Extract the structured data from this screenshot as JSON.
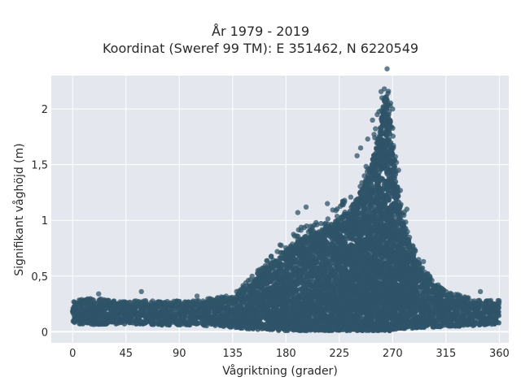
{
  "chart_data": {
    "type": "scatter",
    "title": "År 1979 - 2019",
    "subtitle": "Koordinat (Sweref 99 TM): E 351462, N 6220549",
    "xlabel": "Vågriktning (grader)",
    "ylabel": "Signifikant våghöjd (m)",
    "xlim": [
      -18,
      368
    ],
    "ylim": [
      -0.1,
      2.3
    ],
    "xticks": [
      0,
      45,
      90,
      135,
      180,
      225,
      270,
      315,
      360
    ],
    "xtick_labels": [
      "0",
      "45",
      "90",
      "135",
      "180",
      "225",
      "270",
      "315",
      "360"
    ],
    "yticks": [
      0,
      0.5,
      1,
      1.5,
      2
    ],
    "ytick_labels": [
      "0",
      "0,5",
      "1",
      "1,5",
      "2"
    ],
    "grid": true,
    "background": "#e5e7ee",
    "marker_color": "#2f5468",
    "series": [
      {
        "x": [
          0,
          10,
          20,
          30,
          45,
          60,
          75,
          90,
          105,
          120,
          135,
          145,
          155,
          165,
          175,
          185,
          195,
          205,
          215,
          225,
          235,
          245,
          252,
          258,
          262,
          265,
          268,
          272,
          278,
          285,
          295,
          305,
          315,
          330,
          345,
          360
        ],
        "y_upper": [
          0.25,
          0.26,
          0.27,
          0.25,
          0.24,
          0.25,
          0.24,
          0.25,
          0.25,
          0.27,
          0.3,
          0.38,
          0.48,
          0.58,
          0.68,
          0.77,
          0.85,
          0.9,
          0.95,
          1.02,
          1.12,
          1.3,
          1.5,
          1.75,
          2.05,
          2.15,
          1.9,
          1.45,
          1.05,
          0.75,
          0.52,
          0.4,
          0.33,
          0.28,
          0.25,
          0.25
        ],
        "y_lower": [
          0.07,
          0.07,
          0.06,
          0.07,
          0.07,
          0.07,
          0.06,
          0.06,
          0.06,
          0.05,
          0.04,
          0.03,
          0.02,
          0.02,
          0.01,
          0.01,
          0.01,
          0.01,
          0.01,
          0.01,
          0.01,
          0.01,
          0.01,
          0.01,
          0.01,
          0.01,
          0.01,
          0.02,
          0.03,
          0.03,
          0.04,
          0.04,
          0.05,
          0.05,
          0.06,
          0.07
        ]
      }
    ],
    "outliers": [
      [
        22,
        0.34
      ],
      [
        58,
        0.36
      ],
      [
        105,
        0.32
      ],
      [
        190,
        1.07
      ],
      [
        197,
        1.12
      ],
      [
        215,
        1.15
      ],
      [
        228,
        1.17
      ],
      [
        240,
        1.58
      ],
      [
        243,
        1.65
      ],
      [
        249,
        1.73
      ],
      [
        253,
        1.9
      ],
      [
        257,
        1.95
      ],
      [
        261,
        2.1
      ],
      [
        263,
        2.18
      ],
      [
        266,
        2.14
      ],
      [
        270,
        2.0
      ],
      [
        275,
        1.45
      ],
      [
        282,
        1.1
      ],
      [
        296,
        0.63
      ],
      [
        344,
        0.36
      ],
      [
        160,
        0.55
      ],
      [
        175,
        0.78
      ]
    ]
  }
}
